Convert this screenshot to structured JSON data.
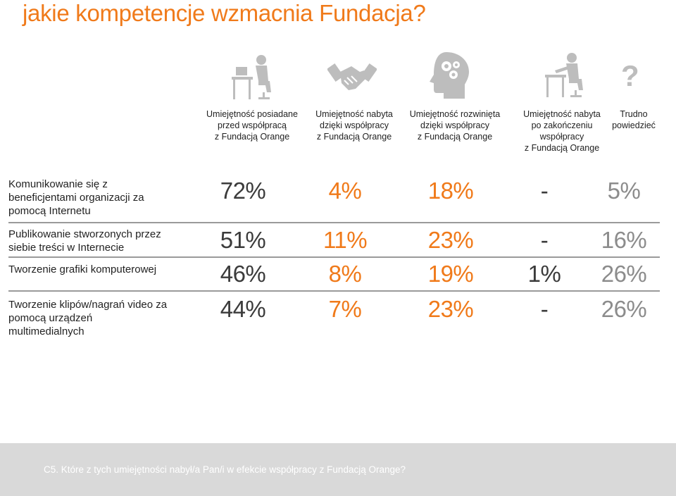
{
  "page": {
    "title": "jakie kompetencje wzmacnia Fundacja?"
  },
  "columns": [
    {
      "header": "Umiejętność posiadane\nprzed współpracą\nz Fundacją Orange",
      "icon": "person-at-desk-icon"
    },
    {
      "header": "Umiejętność nabyta\ndzięki współpracy\nz Fundacją Orange",
      "icon": "handshake-icon"
    },
    {
      "header": "Umiejętność rozwinięta\ndzięki współpracy\nz Fundacją Orange",
      "icon": "head-gears-icon"
    },
    {
      "header": "Umiejętność nabyta\npo zakończeniu\nwspółpracy\nz Fundacją Orange",
      "icon": "person-at-desk-icon"
    },
    {
      "header": "Trudno\npowiedzieć",
      "icon": "question-mark-icon"
    }
  ],
  "question_mark": "?",
  "rows": [
    {
      "label": "Komunikowanie się z\nbeneficjentami organizacji za\npomocą Internetu",
      "values": [
        "72%",
        "4%",
        "18%",
        "-",
        "5%"
      ]
    },
    {
      "label": "Publikowanie stworzonych przez\nsiebie treści w Internecie",
      "values": [
        "51%",
        "11%",
        "23%",
        "-",
        "16%"
      ]
    },
    {
      "label": "Tworzenie grafiki komputerowej",
      "values": [
        "46%",
        "8%",
        "19%",
        "1%",
        "26%"
      ]
    },
    {
      "label": "Tworzenie klipów/nagrań video za\npomocą urządzeń\nmultimedialnych",
      "values": [
        "44%",
        "7%",
        "23%",
        "-",
        "26%"
      ]
    }
  ],
  "chart_data": {
    "type": "table",
    "title": "jakie kompetencje wzmacnia Fundacja?",
    "columns": [
      "Umiejętność posiadane przed współpracą z Fundacją Orange",
      "Umiejętność nabyta dzięki współpracy z Fundacją Orange",
      "Umiejętność rozwinięta dzięki współpracy z Fundacją Orange",
      "Umiejętność nabyta po zakończeniu współpracy z Fundacją Orange",
      "Trudno powiedzieć"
    ],
    "rows": [
      "Komunikowanie się z beneficjentami organizacji za pomocą Internetu",
      "Publikowanie stworzonych przez siebie treści w Internecie",
      "Tworzenie grafiki komputerowej",
      "Tworzenie klipów/nagrań video za pomocą urządzeń multimedialnych"
    ],
    "values": [
      [
        72,
        4,
        18,
        null,
        5
      ],
      [
        51,
        11,
        23,
        null,
        16
      ],
      [
        46,
        8,
        19,
        1,
        26
      ],
      [
        44,
        7,
        23,
        null,
        26
      ]
    ],
    "unit": "%"
  },
  "colors": {
    "orange": "#f07a1a",
    "gray": "#3b3b3b",
    "light": "#8c8c8c"
  },
  "footer": {
    "text": "C5. Które z tych umiejętności nabył/a Pan/i w efekcie współpracy z Fundacją Orange?"
  }
}
